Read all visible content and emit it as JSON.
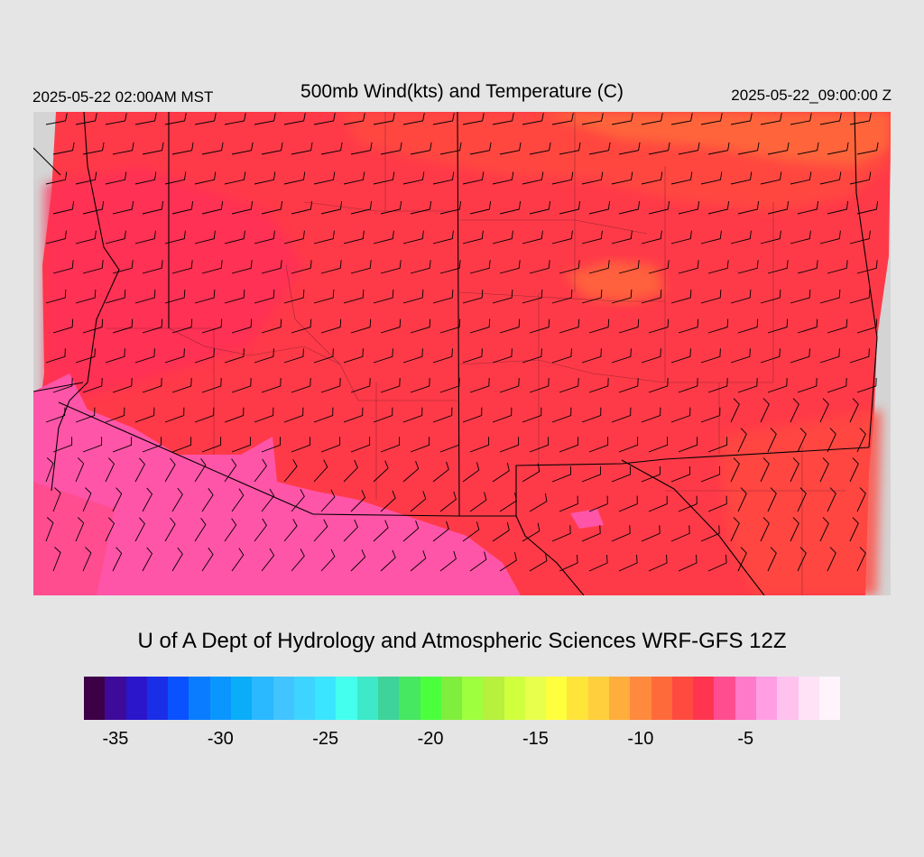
{
  "header": {
    "valid_local": "2025-05-22 02:00AM MST",
    "title": "500mb Wind(kts) and Temperature (C)",
    "valid_utc": "2025-05-22_09:00:00 Z"
  },
  "map": {
    "region": "Southwestern United States",
    "temperature_field_colors": {
      "northern_band": "#ff6a3a",
      "central_band": "#ff3a48",
      "western_band": "#ff2f58",
      "southern_band": "#ff55a8"
    },
    "wind_barbs": "black wind barbs on a regular grid"
  },
  "footer": {
    "credit": "U of A Dept of Hydrology and Atmospheric Sciences WRF-GFS 12Z"
  },
  "legend": {
    "colors": [
      "#3d0047",
      "#3d0a9a",
      "#2b16cc",
      "#1a2ee8",
      "#0a52ff",
      "#0a7cff",
      "#0a96ff",
      "#0aadf7",
      "#2ab8ff",
      "#41c4ff",
      "#3dd5ff",
      "#3ae6ff",
      "#44ffee",
      "#3de9c8",
      "#3ed39a",
      "#45e860",
      "#4cff3d",
      "#7fee3d",
      "#9dff3d",
      "#b7f03d",
      "#d0ff3d",
      "#e8ff4c",
      "#ffff3d",
      "#ffe43a",
      "#ffcf3d",
      "#ffad3d",
      "#ff8a3d",
      "#ff6a3a",
      "#ff4a40",
      "#ff3550",
      "#ff4d90",
      "#ff7ac8",
      "#ff9ee2",
      "#ffc2ee",
      "#ffe2f6",
      "#fff4fb"
    ],
    "tick_labels": [
      "-35",
      "-30",
      "-25",
      "-20",
      "-15",
      "-10",
      "-5"
    ],
    "tick_swatch_index": [
      1,
      6,
      11,
      16,
      21,
      26,
      31
    ]
  }
}
